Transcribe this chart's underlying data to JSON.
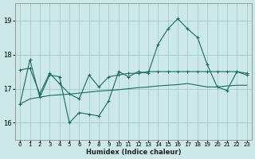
{
  "xlabel": "Humidex (Indice chaleur)",
  "xlim": [
    -0.5,
    23.5
  ],
  "ylim": [
    15.5,
    19.5
  ],
  "yticks": [
    16,
    17,
    18,
    19
  ],
  "xticks": [
    0,
    1,
    2,
    3,
    4,
    5,
    6,
    7,
    8,
    9,
    10,
    11,
    12,
    13,
    14,
    15,
    16,
    17,
    18,
    19,
    20,
    21,
    22,
    23
  ],
  "bg_color": "#cce8e8",
  "grid_color": "#aacfcf",
  "line_color": "#1a6b5a",
  "series1_x": [
    0,
    1,
    2,
    3,
    4,
    5,
    6,
    7,
    8,
    9,
    10,
    11,
    12,
    13,
    14,
    15,
    16,
    17,
    18,
    19,
    20,
    21,
    22,
    23
  ],
  "series1_y": [
    16.55,
    17.85,
    16.75,
    17.4,
    17.35,
    16.0,
    16.3,
    16.25,
    16.2,
    16.65,
    17.5,
    17.35,
    17.5,
    17.45,
    18.3,
    18.75,
    19.05,
    18.75,
    18.5,
    17.7,
    17.05,
    16.95,
    17.5,
    17.4
  ],
  "series2_x": [
    0,
    1,
    2,
    3,
    4,
    5,
    6,
    7,
    8,
    9,
    10,
    11,
    12,
    13,
    14,
    15,
    16,
    17,
    18,
    19,
    20,
    21,
    22,
    23
  ],
  "series2_y": [
    17.55,
    17.6,
    16.85,
    17.45,
    17.15,
    16.85,
    16.7,
    17.4,
    17.05,
    17.35,
    17.4,
    17.45,
    17.45,
    17.5,
    17.5,
    17.5,
    17.5,
    17.5,
    17.5,
    17.5,
    17.5,
    17.5,
    17.5,
    17.45
  ],
  "series3_x": [
    0,
    1,
    2,
    3,
    4,
    5,
    6,
    7,
    8,
    9,
    10,
    11,
    12,
    13,
    14,
    15,
    16,
    17,
    18,
    19,
    20,
    21,
    22,
    23
  ],
  "series3_y": [
    16.55,
    16.7,
    16.75,
    16.8,
    16.82,
    16.84,
    16.87,
    16.9,
    16.93,
    16.95,
    16.97,
    17.0,
    17.03,
    17.05,
    17.08,
    17.1,
    17.12,
    17.15,
    17.1,
    17.05,
    17.05,
    17.08,
    17.1,
    17.1
  ]
}
